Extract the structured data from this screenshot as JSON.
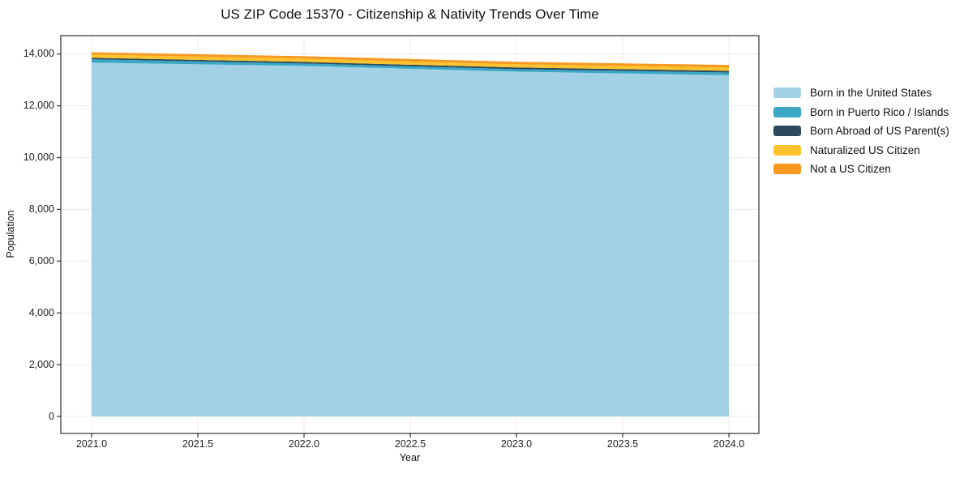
{
  "title": "US ZIP Code 15370 - Citizenship & Nativity Trends Over Time",
  "chart_data": {
    "type": "area",
    "stacked": true,
    "title": "US ZIP Code 15370 - Citizenship & Nativity Trends Over Time",
    "xlabel": "Year",
    "ylabel": "Population",
    "x": [
      2021,
      2022,
      2023,
      2024
    ],
    "series": [
      {
        "name": "Born in the United States",
        "color": "#a2d1e6",
        "values": [
          13670,
          13540,
          13320,
          13180
        ]
      },
      {
        "name": "Born in Puerto Rico / Islands",
        "color": "#39a7c5",
        "values": [
          125,
          95,
          95,
          105
        ]
      },
      {
        "name": "Born Abroad of US Parent(s)",
        "color": "#2b4a5c",
        "values": [
          60,
          60,
          65,
          65
        ]
      },
      {
        "name": "Naturalized US Citizen",
        "color": "#fcc32e",
        "values": [
          125,
          125,
          125,
          125
        ]
      },
      {
        "name": "Not a US Citizen",
        "color": "#f7981f",
        "values": [
          90,
          95,
          95,
          105
        ]
      }
    ],
    "totals": [
      14070,
      13915,
      13700,
      13580
    ],
    "x_ticks": {
      "values": [
        2021.0,
        2021.5,
        2022.0,
        2022.5,
        2023.0,
        2023.5,
        2024.0
      ],
      "labels": [
        "2021.0",
        "2021.5",
        "2022.0",
        "2022.5",
        "2023.0",
        "2023.5",
        "2024.0"
      ]
    },
    "y_ticks": {
      "values": [
        0,
        2000,
        4000,
        6000,
        8000,
        10000,
        12000,
        14000
      ],
      "labels": [
        "0",
        "2,000",
        "4,000",
        "6,000",
        "8,000",
        "10,000",
        "12,000",
        "14,000"
      ]
    },
    "xlim": [
      2020.855,
      2024.141
    ],
    "ylim": [
      -657,
      14710
    ],
    "grid": true,
    "legend_position": "center right outside",
    "colors": {
      "grid": "#ececec",
      "spine": "#2e2e2e",
      "tick": "#333333"
    }
  }
}
